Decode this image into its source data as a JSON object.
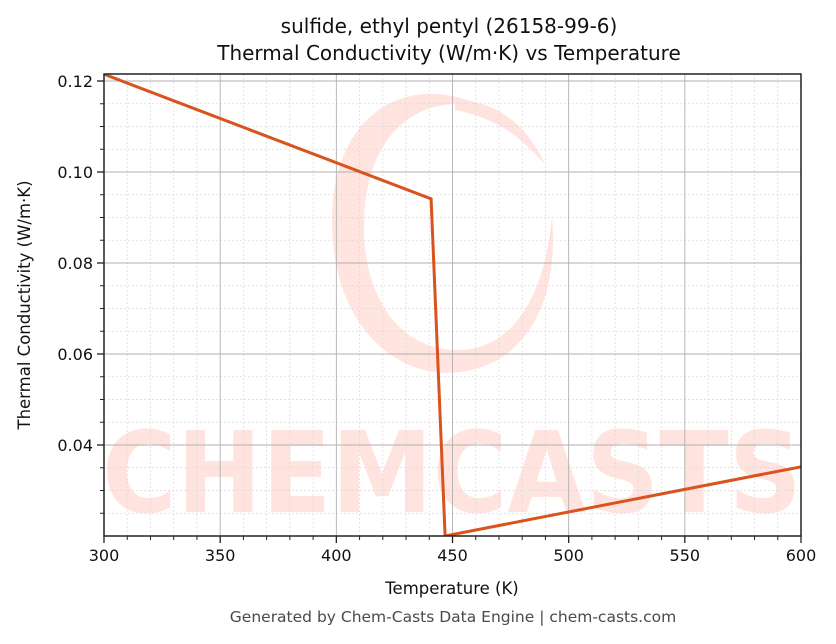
{
  "title": {
    "line1": "sulfide, ethyl pentyl (26158-99-6)",
    "line2": "Thermal Conductivity (W/m·K) vs Temperature"
  },
  "footer": "Generated by Chem-Casts Data Engine | chem-casts.com",
  "watermark": {
    "text": "CHEMCASTS",
    "color": "#ff6a50"
  },
  "colors": {
    "line": "#d9531e",
    "grid_major": "#b0b0b0",
    "grid_minor": "#d9d9d9",
    "axes": "#222222"
  },
  "chart_data": {
    "type": "line",
    "title": "sulfide, ethyl pentyl (26158-99-6) — Thermal Conductivity (W/m·K) vs Temperature",
    "xlabel": "Temperature (K)",
    "ylabel": "Thermal Conductivity (W/m·K)",
    "xlim": [
      300,
      600
    ],
    "ylim": [
      0.02,
      0.1215
    ],
    "xticks": [
      300,
      350,
      400,
      450,
      500,
      550,
      600
    ],
    "xtick_labels": [
      "300",
      "350",
      "400",
      "450",
      "500",
      "550",
      "600"
    ],
    "yticks": [
      0.04,
      0.06,
      0.08,
      0.1,
      0.12
    ],
    "ytick_labels": [
      "0.04",
      "0.06",
      "0.08",
      "0.10",
      "0.12"
    ],
    "grid": true,
    "legend": null,
    "series": [
      {
        "name": "Thermal Conductivity",
        "x": [
          300,
          440.8,
          446.8,
          600
        ],
        "y": [
          0.1215,
          0.0941,
          0.02,
          0.0352
        ]
      }
    ]
  }
}
